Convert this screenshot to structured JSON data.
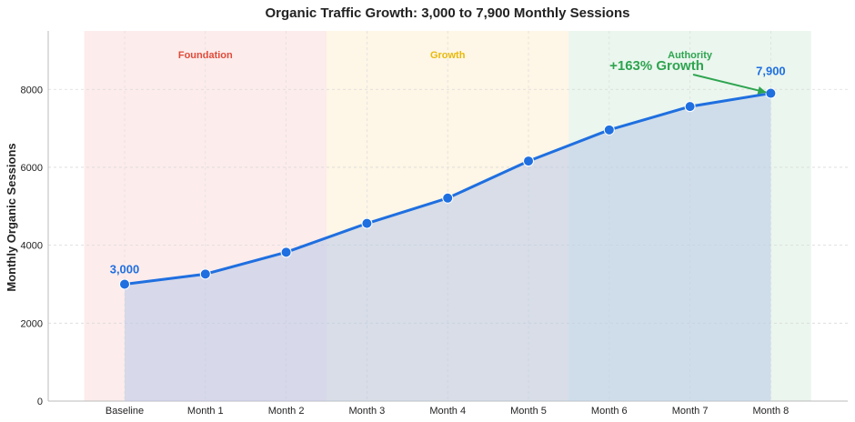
{
  "chart_data": {
    "type": "line",
    "title": "Organic Traffic Growth: 3,000 to 7,900 Monthly Sessions",
    "xlabel": "",
    "ylabel": "Monthly Organic Sessions",
    "categories": [
      "Baseline",
      "Month 1",
      "Month 2",
      "Month 3",
      "Month 4",
      "Month 5",
      "Month 6",
      "Month 7",
      "Month 8"
    ],
    "series": [
      {
        "values": [
          3000,
          3260,
          3820,
          4560,
          5210,
          6160,
          6960,
          7560,
          7900
        ]
      }
    ],
    "ylim": [
      0,
      9500
    ],
    "yticks": [
      0,
      2000,
      4000,
      6000,
      8000
    ],
    "grid": true,
    "phases": [
      {
        "label": "Foundation",
        "from": -0.5,
        "to": 2.5,
        "color": "#fdecec",
        "text_color": "#e04b3a"
      },
      {
        "label": "Growth",
        "from": 2.5,
        "to": 5.5,
        "color": "#fef6e6",
        "text_color": "#e8b90a"
      },
      {
        "label": "Authority",
        "from": 5.5,
        "to": 8.5,
        "color": "#eaf6ee",
        "text_color": "#2ea44f"
      }
    ],
    "annotations": {
      "start_label": "3,000",
      "end_label": "7,900",
      "growth_label": "+163% Growth"
    },
    "colors": {
      "line": "#1f6fe0",
      "fill": "#b8c8e8",
      "growth": "#2ea44f"
    }
  }
}
